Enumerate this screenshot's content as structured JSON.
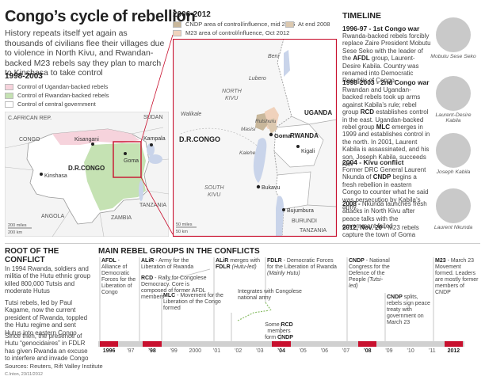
{
  "title": "Congo’s cycle of rebellion",
  "intro": "History repeats itself yet again as thousands of civilians flee their villages due to violence in North Kivu, and Rwandan-backed M23 rebels say they plan to march to Kinshasa to take control",
  "map_left": {
    "period": "1998-2003",
    "legend": [
      {
        "label": "Control of Ugandan-backed rebels",
        "color": "#f6d3dc"
      },
      {
        "label": "Control of Rwandan-backed rebels",
        "color": "#c5e2b3"
      },
      {
        "label": "Control of central government",
        "color": "#ffffff"
      }
    ],
    "labels": {
      "car": "C.AFRICAN REP.",
      "sudan": "SUDAN",
      "congo": "CONGO",
      "kisangani": "Kisangani",
      "goma": "Goma",
      "kampala": "Kampala",
      "drc": "D.R.CONGO",
      "kinshasa": "Kinshasa",
      "tanzania": "TANZANIA",
      "angola": "ANGOLA",
      "zambia": "ZAMBIA",
      "scale_mi": "200 miles",
      "scale_km": "200 km"
    }
  },
  "map_right": {
    "period": "2006-2012",
    "legend": [
      {
        "label": "CNDP area of control/influence, mid 2006",
        "color": "#c8b79b"
      },
      {
        "label": "At end 2008",
        "color": "#dcc9b0"
      },
      {
        "label": "M23 area of control/influence, Oct 2012",
        "color": "#f0d2bc"
      }
    ],
    "labels": {
      "beni": "Beni",
      "lubero": "Lubero",
      "north_kivu": "NORTH",
      "north_kivu2": "KIVU",
      "uganda": "UGANDA",
      "walikale": "Walikale",
      "rutshuru": "Rutshuru",
      "masisi": "Masisi",
      "drc": "D.R.CONGO",
      "goma": "Goma",
      "rwanda": "RWANDA",
      "kalehe": "Kalehe",
      "kigali": "Kigali",
      "bukavu": "Bukavu",
      "south_kivu": "SOUTH",
      "south_kivu2": "KIVU",
      "bujumbura": "Bujumbura",
      "burundi": "BURUNDI",
      "tanzania": "TANZANIA",
      "scale_mi": "50 miles",
      "scale_km": "50 km"
    }
  },
  "timeline": {
    "title": "TIMELINE",
    "entries": [
      {
        "head": "1996-97 - 1st Congo war",
        "body_html": "Rwanda-backed rebels forcibly replace Zaire President Mobutu Sese Seko with the leader of the <b>AFDL</b> group, Laurent-Desire Kabila. Country was renamed into Democratic Republic of Congo"
      },
      {
        "head": "1998-2003 - 2nd Congo war",
        "body_html": "Rwandan and Ugandan-backed rebels took up arms against Kabila’s rule; rebel group <b>RCD</b> establishes control in the east. Ugandan-backed rebel group <b>MLC</b> emerges in 1999 and establishes control in the north. In 2001, Laurent Kabila is assassinated, and his son, Joseph Kabila, succeeds him"
      },
      {
        "head": "2004 - Kivu conflict",
        "body_html": "Former DRC General Laurent Nkunda of <b>CNDP</b> begins a fresh rebellion in eastern Congo to counter what he said was persecution by Kabila’s army"
      },
      {
        "head": "2008 -",
        "body_html": "Nkunda launches fresh attacks in North Kivu after peace talks with the government failed"
      },
      {
        "head": "2012, Nov. 20 -",
        "body_html": "M23 rebels capture the town of Goma"
      }
    ],
    "portraits": [
      {
        "caption": "Mobutu Sese Seko"
      },
      {
        "caption": "Laurent-Desire Kabila"
      },
      {
        "caption": "Joseph Kabila"
      },
      {
        "caption": "Laurent Nkunda"
      }
    ]
  },
  "root": {
    "title": "ROOT OF THE CONFLICT",
    "paras": [
      "In 1994 Rwanda, soldiers and militia of the Hutu ethnic group killed 800,000 Tutsis and moderate Hutus",
      "Tutsi rebels, led by Paul Kagame, now the current president of Rwanda, toppled the Hutu regime and sent Hutus into eastern Congo",
      "Since then, the presence of Hutu “genocidaires” in FDLR has given Rwanda an excuse to interfere and invade Congo"
    ]
  },
  "groups": {
    "title": "MAIN REBEL GROUPS IN THE CONFLICTS",
    "notes": {
      "afdl": "<b>AFDL</b> - Alliance of Democratic Forces for the Liberation of Congo",
      "alir": "<b>ALiR</b> - Army for the Liberation of Rwanda",
      "rcd": "<b>RCD</b> - Rally for Congolese Democracy. Core is composed of former AFDL members",
      "mlc": "<b>MLC</b> - Movement for the Liberation of the Congo formed",
      "alir_merge": "<b>ALiR</b> merges with <b>FDLR</b> <i>(Hutu-led)</i>",
      "fdlr": "<b>FDLR</b> - Democratic Forces for the Liberation of Rwanda <i>(Mainly Hutu)</i>",
      "integrates": "Integrates with Congolese national army",
      "some_rcd": "Some <b>RCD</b> members form <b>CNDP</b>",
      "cndp": "<b>CNDP</b> - National Congress for the Defence of the People <i>(Tutsi-led)</i>",
      "cndp_splits": "<b>CNDP</b> splits, rebels sign peace treaty with government on March 23",
      "m23": "<b>M23</b> - March 23 Movement formed. Leaders are mostly former members of CNDP"
    },
    "years": [
      "1996",
      "’97",
      "’98",
      "’99",
      "2000",
      "’01",
      "’02",
      "’03",
      "’04",
      "’05",
      "’06",
      "’07",
      "’08",
      "’09",
      "’10",
      "’11",
      "2012"
    ],
    "highlight_years": [
      "1996",
      "’98",
      "’04",
      "’08",
      "2012"
    ]
  },
  "sources": "Sources: Reuters, Rift Valley Institute",
  "credit": "C.Inton, 23/11/2012",
  "colors": {
    "accent_red": "#c8102e",
    "bar_grey": "#d0d0d0",
    "line_grey": "#b9b9b9",
    "green_dash": "#8cbf6a",
    "lake_blue": "#c9d4ea"
  }
}
